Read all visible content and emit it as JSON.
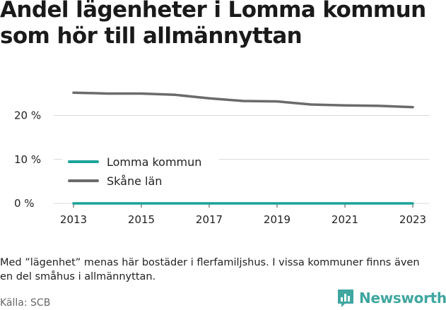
{
  "title": "Andel lägenheter i Lomma kommun som hör till allmännyttan",
  "note": "Med ”lägenhet” menas här bostäder i flerfamiljshus. I vissa kommuner finns även en del småhus i allmännyttan.",
  "source": "Källa: SCB",
  "brand": {
    "name": "Newsworthy",
    "icon": "bar-chart-logo-icon",
    "color": "#3fa6a0"
  },
  "chart_data": {
    "type": "line",
    "x": [
      2013,
      2014,
      2015,
      2016,
      2017,
      2018,
      2019,
      2020,
      2021,
      2022,
      2023
    ],
    "x_ticks": [
      2013,
      2015,
      2017,
      2019,
      2021,
      2023
    ],
    "y_ticks": [
      0,
      10,
      20
    ],
    "y_tick_labels": [
      "0 %",
      "10 %",
      "20 %"
    ],
    "ylim": [
      0,
      27
    ],
    "grid": true,
    "legend_position": "center-left",
    "series": [
      {
        "name": "Lomma kommun",
        "color": "#1aa39a",
        "values": [
          0,
          0,
          0,
          0,
          0,
          0,
          0,
          0,
          0,
          0,
          0
        ]
      },
      {
        "name": "Skåne län",
        "color": "#6b6b6d",
        "values": [
          25.2,
          25.0,
          25.0,
          24.7,
          23.9,
          23.3,
          23.2,
          22.5,
          22.3,
          22.2,
          21.9
        ]
      }
    ]
  }
}
